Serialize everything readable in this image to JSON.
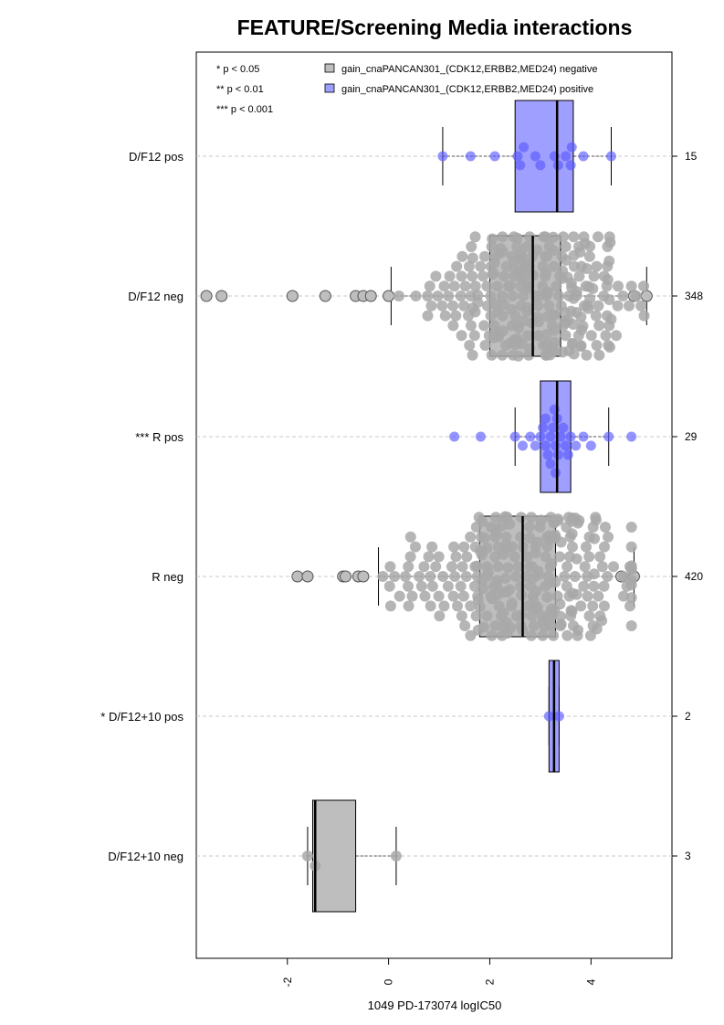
{
  "chart_data": {
    "type": "boxplot",
    "orientation": "horizontal",
    "title": "FEATURE/Screening Media interactions",
    "xlabel": "1049 PD-173074 logIC50",
    "xlim": [
      -3.8,
      5.6
    ],
    "xticks": [
      -2,
      0,
      2,
      4
    ],
    "grid": "dashed horizontal reference lines",
    "significance_legend": [
      "* p < 0.05",
      "** p < 0.01",
      "*** p < 0.001"
    ],
    "series_legend": {
      "placement": "top",
      "entries": [
        {
          "name": "gain_cnaPANCAN301_(CDK12,ERBB2,MED24) negative",
          "color": "#bebebe"
        },
        {
          "name": "gain_cnaPANCAN301_(CDK12,ERBB2,MED24) positive",
          "color": "#9f9fff"
        }
      ]
    },
    "colors": {
      "negative_box": "#bebebe",
      "positive_box": "#9f9fff",
      "negative_point": "#a8a8a8",
      "positive_point": "#5a5aff"
    },
    "groups": [
      {
        "label": "D/F12 pos",
        "count": "15",
        "type": "positive",
        "min": 1.07,
        "q1": 2.5,
        "median": 3.33,
        "q3": 3.65,
        "max": 4.4,
        "points": [
          1.07,
          1.62,
          2.1,
          2.55,
          2.67,
          2.9,
          3.28,
          3.35,
          3.5,
          3.6,
          3.62,
          3.85,
          4.4,
          3.0,
          2.6
        ]
      },
      {
        "label": "D/F12 neg",
        "count": "348",
        "type": "negative",
        "min": 0.05,
        "q1": 2.0,
        "median": 2.85,
        "q3": 3.4,
        "max": 5.1,
        "outliers": [
          -3.6,
          -3.3,
          -1.9,
          -1.25,
          -0.65,
          -0.5,
          -0.35,
          0.0,
          4.85,
          5.1
        ]
      },
      {
        "label": "*** R pos",
        "count": "29",
        "type": "positive",
        "min": 2.5,
        "q1": 3.0,
        "median": 3.33,
        "q3": 3.6,
        "max": 4.35,
        "points": [
          1.3,
          1.82,
          2.5,
          2.65,
          2.8,
          2.9,
          3.0,
          3.05,
          3.1,
          3.15,
          3.2,
          3.25,
          3.28,
          3.3,
          3.33,
          3.35,
          3.4,
          3.45,
          3.5,
          3.55,
          3.6,
          3.7,
          3.85,
          4.0,
          4.35,
          4.8,
          3.2,
          3.3,
          3.1
        ]
      },
      {
        "label": "R neg",
        "count": "420",
        "type": "negative",
        "min": -0.2,
        "q1": 1.8,
        "median": 2.65,
        "q3": 3.3,
        "max": 4.85,
        "outliers": [
          -1.8,
          -1.6,
          -0.9,
          -0.85,
          -0.6,
          -0.5,
          4.6,
          4.85
        ]
      },
      {
        "label": "* D/F12+10 pos",
        "count": "2",
        "type": "positive",
        "min": 3.17,
        "q1": 3.17,
        "median": 3.27,
        "q3": 3.37,
        "max": 3.37,
        "points": [
          3.17,
          3.37
        ]
      },
      {
        "label": "D/F12+10 neg",
        "count": "3",
        "type": "negative",
        "min": -1.6,
        "q1": -1.5,
        "median": -1.45,
        "q3": -0.65,
        "max": 0.15,
        "points": [
          -1.6,
          -1.45,
          0.15
        ]
      }
    ]
  }
}
